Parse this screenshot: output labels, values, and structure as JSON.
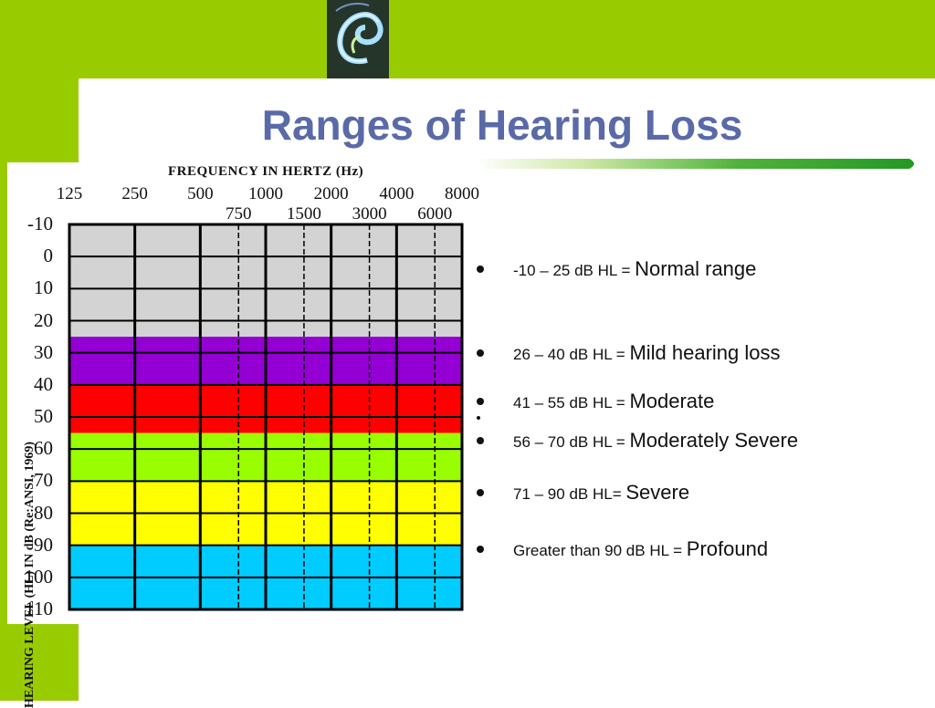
{
  "slide": {
    "title": "Ranges of Hearing Loss",
    "colors": {
      "accent_bar": "#99cc00",
      "title_color": "#5a6aa8",
      "rule_color": "#3a9a2a"
    },
    "logo_icon": "ear-icon"
  },
  "chart_data": {
    "type": "heatmap",
    "title": "FREQUENCY IN HERTZ (Hz)",
    "ylabel": "HEARING LEVEL (HL) IN dB (Re:ANSI, 1969)",
    "x_ticks_top": [
      "125",
      "250",
      "500",
      "1000",
      "2000",
      "4000",
      "8000"
    ],
    "x_ticks_bottom": [
      "750",
      "1500",
      "3000",
      "6000"
    ],
    "x_ticks": [
      {
        "label": "125",
        "row": "top",
        "freq": 125
      },
      {
        "label": "250",
        "row": "top",
        "freq": 250
      },
      {
        "label": "500",
        "row": "top",
        "freq": 500
      },
      {
        "label": "750",
        "row": "bottom",
        "freq": 750
      },
      {
        "label": "1000",
        "row": "top",
        "freq": 1000
      },
      {
        "label": "1500",
        "row": "bottom",
        "freq": 1500
      },
      {
        "label": "2000",
        "row": "top",
        "freq": 2000
      },
      {
        "label": "3000",
        "row": "bottom",
        "freq": 3000
      },
      {
        "label": "4000",
        "row": "top",
        "freq": 4000
      },
      {
        "label": "6000",
        "row": "bottom",
        "freq": 6000
      },
      {
        "label": "8000",
        "row": "top",
        "freq": 8000
      }
    ],
    "y_ticks": [
      "-10",
      "0",
      "10",
      "20",
      "30",
      "40",
      "50",
      "60",
      "70",
      "80",
      "90",
      "100",
      "110"
    ],
    "y_values": [
      -10,
      0,
      10,
      20,
      30,
      40,
      50,
      60,
      70,
      80,
      90,
      100,
      110
    ],
    "ylim": [
      -10,
      110
    ],
    "bands": [
      {
        "name": "Normal range",
        "from": -10,
        "to": 25,
        "color": "#d3d3d3"
      },
      {
        "name": "Mild hearing loss",
        "from": 25,
        "to": 40,
        "color": "#9400d3"
      },
      {
        "name": "Moderate",
        "from": 40,
        "to": 55,
        "color": "#ff0000"
      },
      {
        "name": "Moderately Severe",
        "from": 55,
        "to": 70,
        "color": "#99ff00"
      },
      {
        "name": "Severe",
        "from": 70,
        "to": 90,
        "color": "#ffff00"
      },
      {
        "name": "Profound",
        "from": 90,
        "to": 110,
        "color": "#00ccff"
      }
    ],
    "grid": true
  },
  "legend": [
    {
      "range": "-10 – 25 dB HL = ",
      "category": "Normal range"
    },
    {
      "range": "26 – 40 dB HL = ",
      "category": "Mild hearing loss"
    },
    {
      "range": "41 –  55 dB HL = ",
      "category": "Moderate"
    },
    {
      "range": "56 – 70 dB HL = ",
      "category": "Moderately Severe"
    },
    {
      "range": "71 – 90 dB HL= ",
      "category": "Severe"
    },
    {
      "range": "Greater than 90 dB HL = ",
      "category": "Profound"
    }
  ]
}
